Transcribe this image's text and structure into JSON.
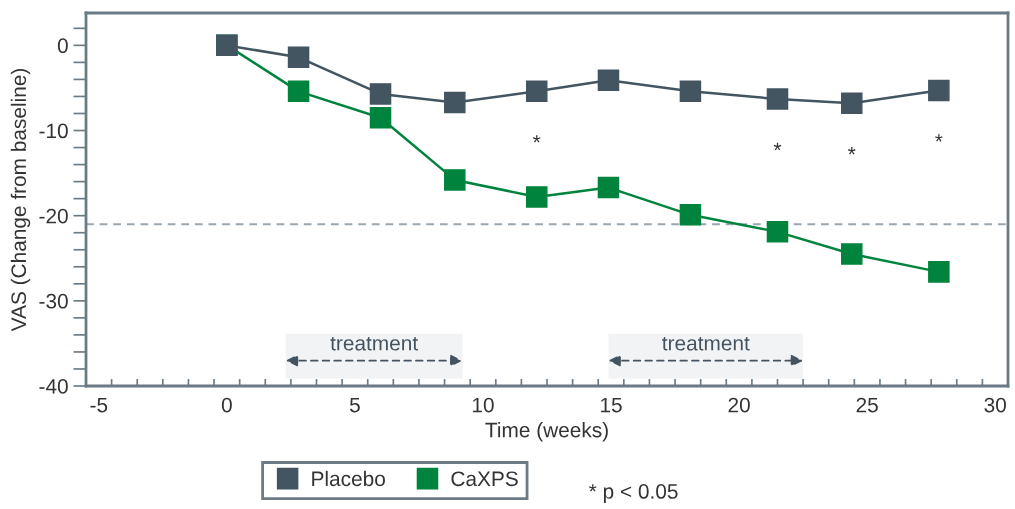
{
  "chart_data": {
    "type": "line",
    "xlabel": "Time (weeks)",
    "ylabel": "VAS (Change from baseline)",
    "x": [
      0,
      2.8,
      6.0,
      8.9,
      12.1,
      14.9,
      18.1,
      21.5,
      24.4,
      27.8
    ],
    "series": [
      {
        "name": "Placebo",
        "color": "#435561",
        "values": [
          0,
          -1.4,
          -5.7,
          -6.7,
          -5.4,
          -4.1,
          -5.4,
          -6.3,
          -6.8,
          -5.3
        ]
      },
      {
        "name": "CaXPS",
        "color": "#00843d",
        "values": [
          0,
          -5.4,
          -8.5,
          -15.8,
          -17.8,
          -16.7,
          -19.9,
          -21.9,
          -24.5,
          -26.6
        ]
      }
    ],
    "xlim": [
      -5.5,
      30.5
    ],
    "xticks": [
      -5,
      0,
      5,
      10,
      15,
      20,
      25,
      30,
      {
        "value": -4.5,
        "label": null
      },
      {
        "value": -3.5,
        "label": null
      },
      {
        "value": -2.5,
        "label": null
      },
      {
        "value": -1.5,
        "label": null
      },
      {
        "value": -0.5,
        "label": null
      },
      {
        "value": 0.5,
        "label": null
      },
      {
        "value": 1.5,
        "label": null
      },
      {
        "value": 2.5,
        "label": null
      },
      {
        "value": 3.5,
        "label": null
      },
      {
        "value": 4.5,
        "label": null
      },
      {
        "value": 5.5,
        "label": null
      },
      {
        "value": 6.5,
        "label": null
      },
      {
        "value": 7.5,
        "label": null
      },
      {
        "value": 8.5,
        "label": null
      },
      {
        "value": 9.5,
        "label": null
      },
      {
        "value": 10.5,
        "label": null
      },
      {
        "value": 11.5,
        "label": null
      },
      {
        "value": 12.5,
        "label": null
      },
      {
        "value": 13.5,
        "label": null
      },
      {
        "value": 14.5,
        "label": null
      },
      {
        "value": 15.5,
        "label": null
      },
      {
        "value": 16.5,
        "label": null
      },
      {
        "value": 17.5,
        "label": null
      },
      {
        "value": 18.5,
        "label": null
      },
      {
        "value": 19.5,
        "label": null
      },
      {
        "value": 20.5,
        "label": null
      },
      {
        "value": 21.5,
        "label": null
      },
      {
        "value": 22.5,
        "label": null
      },
      {
        "value": 23.5,
        "label": null
      },
      {
        "value": 24.5,
        "label": null
      },
      {
        "value": 25.5,
        "label": null
      },
      {
        "value": 26.5,
        "label": null
      },
      {
        "value": 27.5,
        "label": null
      },
      {
        "value": 28.5,
        "label": null
      },
      {
        "value": 29.5,
        "label": null
      }
    ],
    "ylim": [
      -40,
      3.8
    ],
    "yticks": [
      0,
      -10,
      -20,
      -30,
      -40,
      {
        "value": 2,
        "label": null
      },
      {
        "value": -2,
        "label": null
      },
      {
        "value": -4,
        "label": null
      },
      {
        "value": -6,
        "label": null
      },
      {
        "value": -8,
        "label": null
      },
      {
        "value": -12,
        "label": null
      },
      {
        "value": -14,
        "label": null
      },
      {
        "value": -16,
        "label": null
      },
      {
        "value": -18,
        "label": null
      },
      {
        "value": -22,
        "label": null
      },
      {
        "value": -24,
        "label": null
      },
      {
        "value": -26,
        "label": null
      },
      {
        "value": -28,
        "label": null
      },
      {
        "value": -32,
        "label": null
      },
      {
        "value": -34,
        "label": null
      },
      {
        "value": -36,
        "label": null
      },
      {
        "value": -38,
        "label": null
      }
    ],
    "ref_lines": [
      {
        "axis": "y",
        "value": -21,
        "color": "#9aa7b0",
        "line_style": "dashed"
      }
    ],
    "bands": [
      {
        "axis": "x",
        "from": 2.3,
        "to": 9.2,
        "label": "treatment",
        "color": "#44535f"
      },
      {
        "axis": "x",
        "from": 14.9,
        "to": 22.5,
        "label": "treatment",
        "color": "#44535f"
      }
    ],
    "annotations": [
      {
        "text": "*",
        "x": 12.1,
        "y": -5.4
      },
      {
        "text": "*",
        "x": 21.5,
        "y": -6.3
      },
      {
        "text": "*",
        "x": 24.4,
        "y": -6.8
      },
      {
        "text": "*",
        "x": 27.8,
        "y": -5.3
      },
      "* p < 0.05"
    ],
    "legend": "bottom",
    "marker": "square",
    "line_style": "solid",
    "grid": false
  }
}
